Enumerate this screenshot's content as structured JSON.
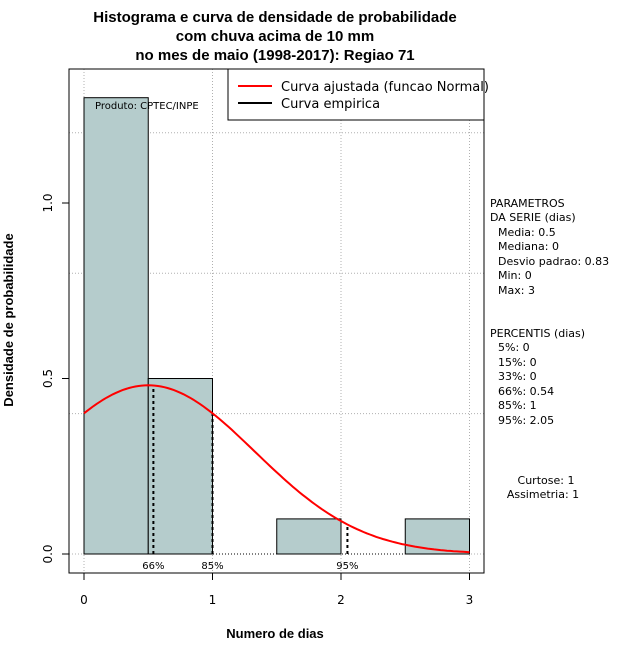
{
  "chart_data": {
    "type": "bar",
    "title_lines": [
      "Histograma e curva de densidade de probabilidade",
      "com chuva acima de 10 mm",
      "no mes de maio (1998-2017): Regiao 71"
    ],
    "xlabel": "Numero de dias",
    "ylabel": "Densidade de probabilidade",
    "xlim": [
      -0.12,
      3.12
    ],
    "ylim": [
      0,
      1.37
    ],
    "xticks": [
      0,
      1,
      2,
      3
    ],
    "yticks": [
      0.0,
      0.5,
      1.0
    ],
    "ytick_labels": [
      "0.0",
      "0.5",
      "1.0"
    ],
    "grid": true,
    "bins": [
      {
        "x0": 0.0,
        "x1": 0.5,
        "density": 1.3
      },
      {
        "x0": 0.5,
        "x1": 1.0,
        "density": 0.5
      },
      {
        "x0": 1.0,
        "x1": 1.5,
        "density": 0.0
      },
      {
        "x0": 1.5,
        "x1": 2.0,
        "density": 0.1
      },
      {
        "x0": 2.0,
        "x1": 2.5,
        "density": 0.0
      },
      {
        "x0": 2.5,
        "x1": 3.0,
        "density": 0.1
      }
    ],
    "bar_color": "#b5cccc",
    "normal_curve": {
      "mean": 0.5,
      "sd": 0.83,
      "x_from": 0,
      "x_to": 3,
      "color": "#ff0000"
    },
    "percentile_markers": [
      {
        "label": "66%",
        "x": 0.54
      },
      {
        "label": "85%",
        "x": 1.0
      },
      {
        "label": "95%",
        "x": 2.05
      }
    ],
    "legend": {
      "position": "top-right",
      "entries": [
        {
          "label": "Curva ajustada (funcao Normal)",
          "color": "#ff0000"
        },
        {
          "label": "Curva empirica",
          "color": "#000000"
        }
      ]
    },
    "credit": "Produto: CPTEC/INPE"
  },
  "stats_panel": {
    "params_title": [
      "PARAMETROS",
      "DA SERIE (dias)"
    ],
    "params": [
      "Media: 0.5",
      "Mediana: 0",
      "Desvio padrao: 0.83",
      "Min: 0",
      "Max: 3"
    ],
    "percentis_title": "PERCENTIS (dias)",
    "percentis": [
      "5%: 0",
      "15%: 0",
      "33%: 0",
      "66%: 0.54",
      "85%: 1",
      "95%: 2.05"
    ],
    "extra": [
      "Curtose: 1",
      "Assimetria: 1"
    ]
  }
}
